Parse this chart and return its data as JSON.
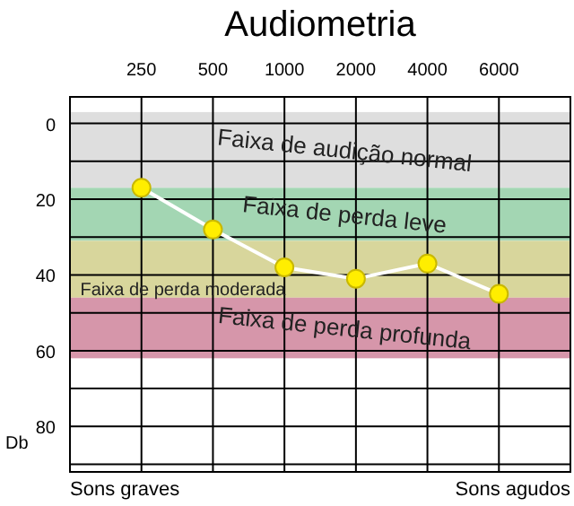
{
  "chart_data": {
    "type": "line",
    "title": "Audiometria",
    "ylabel": "Db",
    "categories": [
      "250",
      "500",
      "1000",
      "2000",
      "4000",
      "6000"
    ],
    "series": [
      {
        "color": "#ffee00",
        "values": [
          17,
          28,
          38,
          41,
          37,
          45
        ]
      }
    ],
    "marker": "circle",
    "line_style": "solid",
    "ylim": [
      92,
      -7
    ],
    "yticks": [
      0,
      {
        "value": 10,
        "label": null
      },
      20,
      {
        "value": 30,
        "label": null
      },
      40,
      {
        "value": 50,
        "label": null
      },
      60,
      {
        "value": 70,
        "label": null
      },
      80,
      {
        "value": 90,
        "label": null
      }
    ],
    "grid": true,
    "bands": [
      {
        "axis": "y",
        "from": -3,
        "to": 17,
        "label": "Faixa de audição normal",
        "color": "#dedede"
      },
      {
        "axis": "y",
        "from": 17,
        "to": 31,
        "label": "Faixa de perda leve",
        "color": "#a3d6b3"
      },
      {
        "axis": "y",
        "from": 31,
        "to": 46,
        "label": "Faixa de perda moderada",
        "color": "#d8d69c"
      },
      {
        "axis": "y",
        "from": 46,
        "to": 62,
        "label": "Faixa de perda profunda",
        "color": "#d696aa"
      }
    ],
    "annotations": [
      "Sons graves",
      "Sons agudos"
    ]
  }
}
